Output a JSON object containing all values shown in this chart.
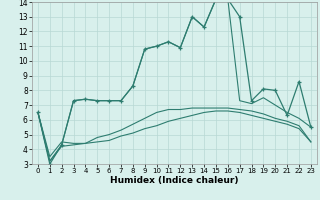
{
  "xlabel": "Humidex (Indice chaleur)",
  "x": [
    0,
    1,
    2,
    3,
    4,
    5,
    6,
    7,
    8,
    9,
    10,
    11,
    12,
    13,
    14,
    15,
    16,
    17,
    18,
    19,
    20,
    21,
    22,
    23
  ],
  "line_main": [
    6.5,
    3.0,
    4.3,
    7.3,
    7.4,
    7.3,
    7.3,
    7.3,
    8.3,
    10.8,
    11.0,
    11.3,
    10.9,
    13.0,
    12.3,
    14.2,
    14.2,
    13.0,
    7.3,
    8.1,
    8.0,
    6.3,
    8.6,
    5.5
  ],
  "line_diag_up": [
    6.5,
    3.2,
    4.3,
    7.3,
    7.4,
    7.3,
    7.3,
    7.3,
    8.3,
    10.8,
    11.0,
    11.3,
    10.9,
    13.0,
    12.3,
    14.2,
    14.2,
    7.3,
    7.1,
    7.5,
    7.0,
    6.5,
    6.1,
    5.5
  ],
  "line_diag_down": [
    6.5,
    3.5,
    4.5,
    4.4,
    4.4,
    4.5,
    4.6,
    4.9,
    5.1,
    5.4,
    5.6,
    5.9,
    6.1,
    6.3,
    6.5,
    6.6,
    6.6,
    6.5,
    6.3,
    6.1,
    5.9,
    5.7,
    5.4,
    4.5
  ],
  "line_flat": [
    6.5,
    3.2,
    4.2,
    4.3,
    4.4,
    4.8,
    5.0,
    5.3,
    5.7,
    6.1,
    6.5,
    6.7,
    6.7,
    6.8,
    6.8,
    6.8,
    6.8,
    6.7,
    6.6,
    6.4,
    6.1,
    5.9,
    5.6,
    4.5
  ],
  "ylim": [
    3,
    14
  ],
  "yticks": [
    3,
    4,
    5,
    6,
    7,
    8,
    9,
    10,
    11,
    12,
    13,
    14
  ],
  "xticks": [
    0,
    1,
    2,
    3,
    4,
    5,
    6,
    7,
    8,
    9,
    10,
    11,
    12,
    13,
    14,
    15,
    16,
    17,
    18,
    19,
    20,
    21,
    22,
    23
  ],
  "line_color": "#2e7d70",
  "bg_color": "#d8f0ec",
  "grid_color": "#b8d8d4"
}
